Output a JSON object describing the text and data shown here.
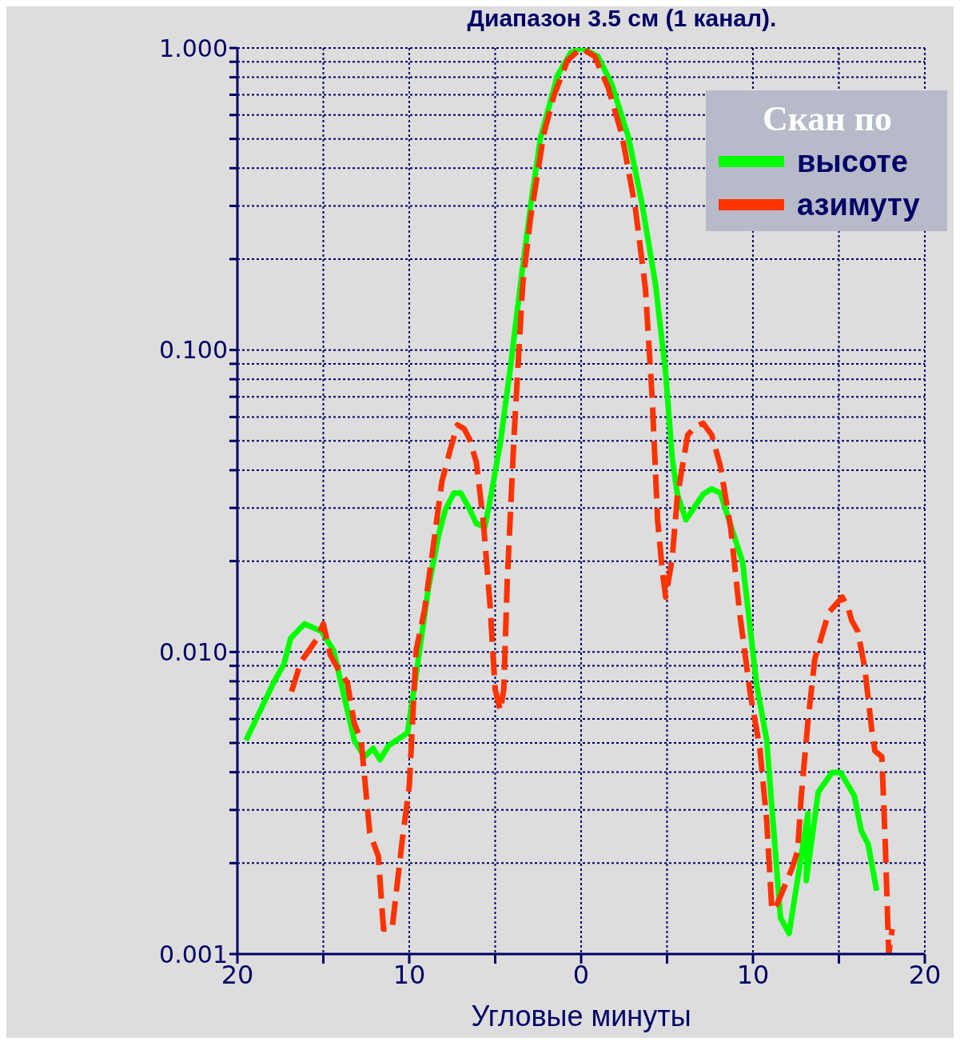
{
  "chart_data": {
    "type": "line",
    "title": "Диапазон 3.5 см (1 канал).",
    "xlabel": "Угловые минуты",
    "legend_title": "Скан по",
    "legend": "top right",
    "grid": true,
    "log": "y",
    "marker": "none",
    "xlim": [
      -20,
      20
    ],
    "xticks": [
      {
        "value": -20,
        "label": "20"
      },
      {
        "value": -15,
        "label": null
      },
      {
        "value": -10,
        "label": "10"
      },
      {
        "value": -5,
        "label": null
      },
      {
        "value": 0,
        "label": "0"
      },
      {
        "value": 5,
        "label": null
      },
      {
        "value": 10,
        "label": "10"
      },
      {
        "value": 15,
        "label": null
      },
      {
        "value": 20,
        "label": "20"
      }
    ],
    "ylim": [
      0.001,
      1
    ],
    "yticks": [
      {
        "value": 0.001,
        "label": "0.001"
      },
      {
        "value": 0.002,
        "label": null
      },
      {
        "value": 0.003,
        "label": null
      },
      {
        "value": 0.004,
        "label": null
      },
      {
        "value": 0.005,
        "label": null
      },
      {
        "value": 0.006,
        "label": null
      },
      {
        "value": 0.007,
        "label": null
      },
      {
        "value": 0.008,
        "label": null
      },
      {
        "value": 0.009,
        "label": null
      },
      {
        "value": 0.01,
        "label": "0.010"
      },
      {
        "value": 0.02,
        "label": null
      },
      {
        "value": 0.03,
        "label": null
      },
      {
        "value": 0.04,
        "label": null
      },
      {
        "value": 0.05,
        "label": null
      },
      {
        "value": 0.06,
        "label": null
      },
      {
        "value": 0.07,
        "label": null
      },
      {
        "value": 0.08,
        "label": null
      },
      {
        "value": 0.09,
        "label": null
      },
      {
        "value": 0.1,
        "label": "0.100"
      },
      {
        "value": 0.2,
        "label": null
      },
      {
        "value": 0.3,
        "label": null
      },
      {
        "value": 0.4,
        "label": null
      },
      {
        "value": 0.5,
        "label": null
      },
      {
        "value": 0.6,
        "label": null
      },
      {
        "value": 0.7,
        "label": null
      },
      {
        "value": 0.8,
        "label": null
      },
      {
        "value": 0.9,
        "label": null
      },
      {
        "value": 1,
        "label": "1.000"
      }
    ],
    "series": [
      {
        "name": "высоте",
        "color": "#00ff00",
        "line_style": "solid",
        "x": [
          -19.5,
          -17.9,
          -17.3,
          -16.9,
          -16.1,
          -15.1,
          -14.4,
          -13.2,
          -12.6,
          -12.1,
          -11.7,
          -11.2,
          -10.1,
          -9.6,
          -8.9,
          -8.3,
          -7.9,
          -7.4,
          -7.0,
          -6.5,
          -6.1,
          -5.6,
          -5.3,
          -4.7,
          -4.1,
          -3.5,
          -2.95,
          -2.36,
          -1.38,
          -0.6,
          0,
          0.98,
          1.77,
          2.76,
          3.54,
          4.33,
          4.92,
          5.3,
          5.6,
          6.1,
          7.1,
          7.6,
          8.1,
          9.4,
          10.2,
          10.8,
          11.6,
          12.1,
          13.2,
          13.1,
          13.8,
          14.6,
          15.1,
          15.9,
          16.3,
          16.7,
          17.2
        ],
        "values": [
          0.0051,
          0.0079,
          0.0091,
          0.0111,
          0.0124,
          0.0117,
          0.0101,
          0.0051,
          0.0045,
          0.0048,
          0.0044,
          0.0049,
          0.0054,
          0.0084,
          0.0161,
          0.0243,
          0.0296,
          0.0336,
          0.0336,
          0.0298,
          0.0266,
          0.026,
          0.0317,
          0.0493,
          0.0889,
          0.17,
          0.297,
          0.505,
          0.81,
          0.966,
          1.0,
          0.938,
          0.762,
          0.505,
          0.306,
          0.165,
          0.0838,
          0.0439,
          0.0333,
          0.0274,
          0.0333,
          0.0347,
          0.0336,
          0.0198,
          0.0079,
          0.0051,
          0.00132,
          0.00117,
          0.00292,
          0.00175,
          0.00344,
          0.00399,
          0.00399,
          0.00334,
          0.00256,
          0.00231,
          0.00162
        ]
      },
      {
        "name": "азимуту",
        "color": "#ff3300",
        "line_style": "dashed",
        "x": [
          -16.85,
          -16.3,
          -15.9,
          -15.4,
          -15.0,
          -14.6,
          -14.2,
          -13.6,
          -13.2,
          -12.8,
          -12.3,
          -11.8,
          -11.5,
          -11.0,
          -10.4,
          -10.0,
          -9.6,
          -9.1,
          -8.7,
          -8.1,
          -7.6,
          -7.2,
          -6.8,
          -6.5,
          -6.1,
          -5.7,
          -5.3,
          -5.0,
          -4.7,
          -4.5,
          -4.3,
          -3.9,
          -3.4,
          -2.95,
          -2.17,
          -1.57,
          -0.79,
          0,
          0.79,
          1.57,
          2.36,
          3.15,
          3.74,
          4.13,
          4.45,
          4.72,
          4.92,
          5.3,
          5.6,
          6.2,
          6.7,
          7.1,
          7.6,
          8.1,
          8.7,
          9.25,
          9.84,
          10.4,
          10.8,
          11.1,
          11.4,
          12.3,
          12.6,
          12.8,
          13.2,
          13.6,
          14.0,
          14.4,
          15.2,
          15.55,
          15.75,
          16.1,
          16.5,
          16.9,
          17.1,
          17.5,
          17.7,
          17.9,
          18.1
        ],
        "values": [
          0.0074,
          0.0093,
          0.01,
          0.011,
          0.0124,
          0.0098,
          0.0089,
          0.0079,
          0.0058,
          0.0051,
          0.00252,
          0.00211,
          0.00121,
          0.00121,
          0.0024,
          0.00359,
          0.0101,
          0.0139,
          0.0204,
          0.0367,
          0.0471,
          0.0565,
          0.0548,
          0.0508,
          0.0426,
          0.0274,
          0.0143,
          0.0075,
          0.0064,
          0.0075,
          0.0171,
          0.0523,
          0.165,
          0.272,
          0.52,
          0.698,
          0.91,
          1.0,
          0.938,
          0.741,
          0.52,
          0.297,
          0.16,
          0.0702,
          0.0274,
          0.0187,
          0.0152,
          0.0204,
          0.0327,
          0.0523,
          0.0561,
          0.0572,
          0.0523,
          0.0413,
          0.0258,
          0.0131,
          0.0073,
          0.0048,
          0.00275,
          0.0014,
          0.00146,
          0.00194,
          0.0022,
          0.00329,
          0.0059,
          0.0095,
          0.0113,
          0.0135,
          0.0152,
          0.0139,
          0.0127,
          0.0117,
          0.0089,
          0.0056,
          0.0047,
          0.0045,
          0.0023,
          0.001,
          0.00121
        ]
      }
    ]
  }
}
